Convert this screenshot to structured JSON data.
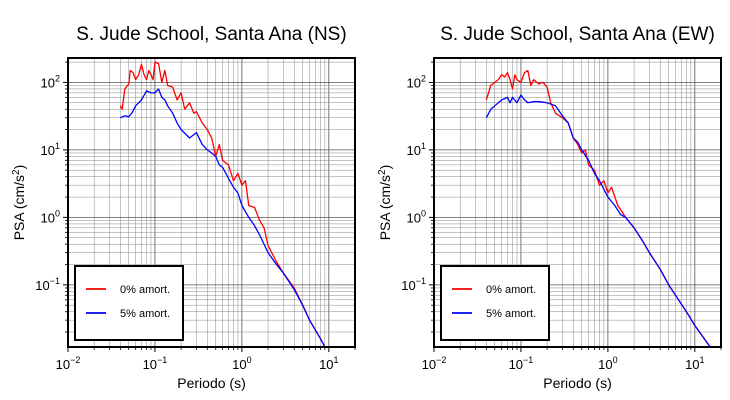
{
  "chart_data": [
    {
      "type": "line",
      "title": "S. Jude School, Santa Ana (NS)",
      "xlabel": "Periodo (s)",
      "ylabel": "PSA (cm/s²)",
      "xscale": "log",
      "yscale": "log",
      "xlim": [
        0.01,
        20
      ],
      "ylim": [
        0.012,
        230
      ],
      "x_tick_labels": [
        {
          "base": "10",
          "exp": "−2",
          "value": 0.01
        },
        {
          "base": "10",
          "exp": "−1",
          "value": 0.1
        },
        {
          "base": "10",
          "exp": "0",
          "value": 1
        },
        {
          "base": "10",
          "exp": "1",
          "value": 10
        }
      ],
      "y_tick_labels": [
        {
          "base": "10",
          "exp": "−1",
          "value": 0.1
        },
        {
          "base": "10",
          "exp": "0",
          "value": 1
        },
        {
          "base": "10",
          "exp": "1",
          "value": 10
        },
        {
          "base": "10",
          "exp": "2",
          "value": 100
        }
      ],
      "grid": true,
      "legend_position": "bottom-left",
      "series": [
        {
          "name": "0% amort.",
          "color": "#ff0000",
          "points": [
            [
              0.04,
              45
            ],
            [
              0.042,
              40
            ],
            [
              0.045,
              80
            ],
            [
              0.05,
              95
            ],
            [
              0.052,
              150
            ],
            [
              0.056,
              140
            ],
            [
              0.06,
              110
            ],
            [
              0.065,
              130
            ],
            [
              0.07,
              185
            ],
            [
              0.075,
              130
            ],
            [
              0.08,
              110
            ],
            [
              0.085,
              150
            ],
            [
              0.09,
              130
            ],
            [
              0.095,
              110
            ],
            [
              0.1,
              200
            ],
            [
              0.11,
              190
            ],
            [
              0.12,
              100
            ],
            [
              0.13,
              150
            ],
            [
              0.14,
              90
            ],
            [
              0.16,
              85
            ],
            [
              0.18,
              55
            ],
            [
              0.2,
              70
            ],
            [
              0.22,
              40
            ],
            [
              0.25,
              50
            ],
            [
              0.28,
              35
            ],
            [
              0.3,
              37
            ],
            [
              0.35,
              25
            ],
            [
              0.4,
              20
            ],
            [
              0.45,
              15
            ],
            [
              0.5,
              8
            ],
            [
              0.55,
              12
            ],
            [
              0.6,
              7
            ],
            [
              0.7,
              6
            ],
            [
              0.8,
              3.5
            ],
            [
              0.9,
              4.5
            ],
            [
              1.0,
              3
            ],
            [
              1.1,
              3.5
            ],
            [
              1.2,
              1.5
            ],
            [
              1.4,
              1.4
            ],
            [
              1.6,
              0.9
            ],
            [
              1.8,
              0.7
            ],
            [
              2.0,
              0.38
            ],
            [
              2.5,
              0.22
            ],
            [
              3.0,
              0.15
            ],
            [
              4.0,
              0.09
            ],
            [
              5.0,
              0.05
            ],
            [
              6.0,
              0.03
            ],
            [
              8.0,
              0.016
            ],
            [
              9.0,
              0.012
            ]
          ]
        },
        {
          "name": "5% amort.",
          "color": "#0000ff",
          "points": [
            [
              0.04,
              30
            ],
            [
              0.045,
              32
            ],
            [
              0.05,
              31
            ],
            [
              0.055,
              36
            ],
            [
              0.06,
              45
            ],
            [
              0.07,
              55
            ],
            [
              0.08,
              75
            ],
            [
              0.09,
              70
            ],
            [
              0.1,
              70
            ],
            [
              0.11,
              80
            ],
            [
              0.12,
              60
            ],
            [
              0.13,
              55
            ],
            [
              0.14,
              45
            ],
            [
              0.16,
              35
            ],
            [
              0.18,
              25
            ],
            [
              0.2,
              20
            ],
            [
              0.25,
              15
            ],
            [
              0.3,
              18
            ],
            [
              0.35,
              12
            ],
            [
              0.4,
              10
            ],
            [
              0.45,
              9
            ],
            [
              0.5,
              8
            ],
            [
              0.55,
              6
            ],
            [
              0.6,
              5.5
            ],
            [
              0.7,
              3.8
            ],
            [
              0.8,
              2.8
            ],
            [
              0.9,
              2.3
            ],
            [
              1.0,
              1.5
            ],
            [
              1.2,
              1.0
            ],
            [
              1.4,
              0.75
            ],
            [
              1.6,
              0.55
            ],
            [
              1.8,
              0.4
            ],
            [
              2.0,
              0.3
            ],
            [
              2.5,
              0.2
            ],
            [
              3.0,
              0.15
            ],
            [
              4.0,
              0.085
            ],
            [
              5.0,
              0.05
            ],
            [
              6.0,
              0.03
            ],
            [
              8.0,
              0.016
            ],
            [
              9.0,
              0.012
            ]
          ]
        }
      ]
    },
    {
      "type": "line",
      "title": "S. Jude School, Santa Ana (EW)",
      "xlabel": "Periodo (s)",
      "ylabel": "PSA (cm/s²)",
      "xscale": "log",
      "yscale": "log",
      "xlim": [
        0.01,
        20
      ],
      "ylim": [
        0.012,
        230
      ],
      "x_tick_labels": [
        {
          "base": "10",
          "exp": "−2",
          "value": 0.01
        },
        {
          "base": "10",
          "exp": "−1",
          "value": 0.1
        },
        {
          "base": "10",
          "exp": "0",
          "value": 1
        },
        {
          "base": "10",
          "exp": "1",
          "value": 10
        }
      ],
      "y_tick_labels": [
        {
          "base": "10",
          "exp": "−1",
          "value": 0.1
        },
        {
          "base": "10",
          "exp": "0",
          "value": 1
        },
        {
          "base": "10",
          "exp": "1",
          "value": 10
        },
        {
          "base": "10",
          "exp": "2",
          "value": 100
        }
      ],
      "grid": true,
      "legend_position": "bottom-left",
      "series": [
        {
          "name": "0% amort.",
          "color": "#ff0000",
          "points": [
            [
              0.04,
              55
            ],
            [
              0.045,
              90
            ],
            [
              0.05,
              100
            ],
            [
              0.055,
              110
            ],
            [
              0.06,
              130
            ],
            [
              0.065,
              120
            ],
            [
              0.07,
              140
            ],
            [
              0.075,
              110
            ],
            [
              0.08,
              80
            ],
            [
              0.085,
              130
            ],
            [
              0.09,
              110
            ],
            [
              0.1,
              100
            ],
            [
              0.11,
              140
            ],
            [
              0.12,
              150
            ],
            [
              0.13,
              90
            ],
            [
              0.14,
              110
            ],
            [
              0.16,
              95
            ],
            [
              0.18,
              100
            ],
            [
              0.2,
              85
            ],
            [
              0.22,
              50
            ],
            [
              0.25,
              35
            ],
            [
              0.3,
              30
            ],
            [
              0.35,
              25
            ],
            [
              0.4,
              15
            ],
            [
              0.45,
              12
            ],
            [
              0.5,
              9
            ],
            [
              0.55,
              10
            ],
            [
              0.6,
              6
            ],
            [
              0.7,
              5
            ],
            [
              0.8,
              3
            ],
            [
              0.9,
              3.5
            ],
            [
              1.0,
              2.3
            ],
            [
              1.1,
              2.8
            ],
            [
              1.3,
              1.5
            ],
            [
              1.6,
              1.0
            ],
            [
              2.0,
              0.7
            ],
            [
              2.5,
              0.45
            ],
            [
              3.0,
              0.3
            ],
            [
              4.0,
              0.17
            ],
            [
              5.0,
              0.1
            ],
            [
              6.0,
              0.07
            ],
            [
              8.0,
              0.04
            ],
            [
              10.0,
              0.025
            ],
            [
              12.0,
              0.018
            ],
            [
              15.0,
              0.012
            ]
          ]
        },
        {
          "name": "5% amort.",
          "color": "#0000ff",
          "points": [
            [
              0.04,
              30
            ],
            [
              0.045,
              40
            ],
            [
              0.05,
              45
            ],
            [
              0.055,
              50
            ],
            [
              0.06,
              55
            ],
            [
              0.07,
              60
            ],
            [
              0.075,
              50
            ],
            [
              0.08,
              60
            ],
            [
              0.09,
              50
            ],
            [
              0.1,
              65
            ],
            [
              0.11,
              55
            ],
            [
              0.12,
              50
            ],
            [
              0.14,
              52
            ],
            [
              0.16,
              52
            ],
            [
              0.2,
              50
            ],
            [
              0.25,
              45
            ],
            [
              0.3,
              32
            ],
            [
              0.35,
              25
            ],
            [
              0.4,
              15
            ],
            [
              0.45,
              13
            ],
            [
              0.5,
              10
            ],
            [
              0.6,
              7
            ],
            [
              0.7,
              4.5
            ],
            [
              0.8,
              3.5
            ],
            [
              1.0,
              2.0
            ],
            [
              1.2,
              1.5
            ],
            [
              1.4,
              1.1
            ],
            [
              1.6,
              1.0
            ],
            [
              2.0,
              0.7
            ],
            [
              2.5,
              0.45
            ],
            [
              3.0,
              0.3
            ],
            [
              4.0,
              0.17
            ],
            [
              5.0,
              0.1
            ],
            [
              6.0,
              0.07
            ],
            [
              8.0,
              0.04
            ],
            [
              10.0,
              0.025
            ],
            [
              12.0,
              0.018
            ],
            [
              15.0,
              0.012
            ]
          ]
        }
      ]
    }
  ]
}
